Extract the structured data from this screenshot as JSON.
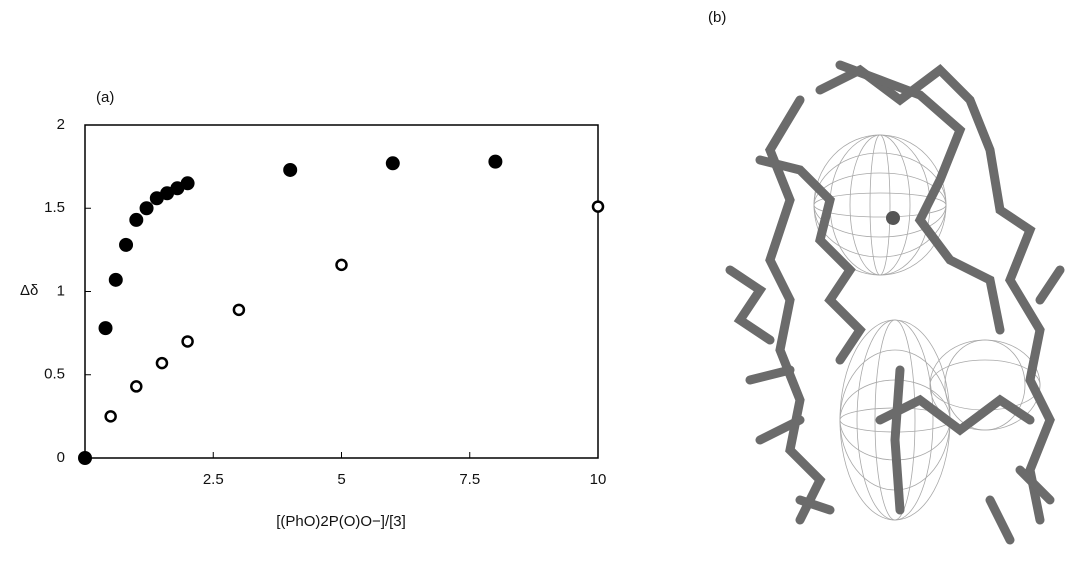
{
  "chart_data": {
    "type": "scatter",
    "panel_label": "(a)",
    "ylabel": "Δδ",
    "xlabel": "[(PhO)2P(O)O−]/[3]",
    "xlim": [
      0,
      10
    ],
    "ylim": [
      0,
      2
    ],
    "xticks": [
      2.5,
      5,
      7.5,
      10
    ],
    "yticks": [
      0,
      0.5,
      1,
      1.5,
      2
    ],
    "series": [
      {
        "color": "#000000",
        "marker": "filled",
        "x": [
          0,
          0.4,
          0.6,
          0.8,
          1.0,
          1.2,
          1.4,
          1.6,
          1.8,
          2,
          4,
          6,
          8
        ],
        "values": [
          0,
          0.78,
          1.07,
          1.28,
          1.43,
          1.5,
          1.56,
          1.59,
          1.62,
          1.65,
          1.73,
          1.77,
          1.78
        ]
      },
      {
        "color": "#000000",
        "marker": "open",
        "x": [
          0.5,
          1,
          1.5,
          2,
          3,
          5,
          10
        ],
        "values": [
          0.25,
          0.43,
          0.57,
          0.7,
          0.89,
          1.16,
          1.51
        ]
      }
    ]
  },
  "figure_b": {
    "panel_label": "(b)"
  }
}
